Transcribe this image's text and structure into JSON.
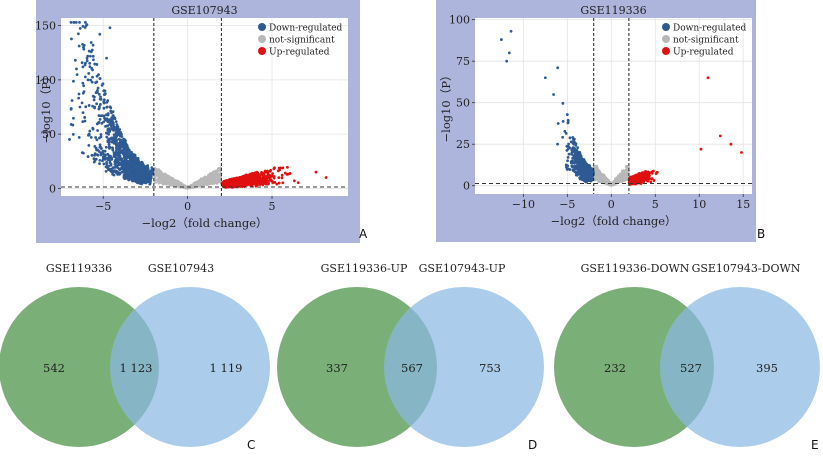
{
  "colors": {
    "panel_bg": "#aeb5dd",
    "plot_bg": "#ffffff",
    "down": "#2e5b93",
    "notsig": "#b8b8b8",
    "up": "#e01010",
    "venn_left": "#5e9e5a",
    "venn_right": "#8ab9e3"
  },
  "panel_labels": [
    "A",
    "B",
    "C",
    "D",
    "E"
  ],
  "chart_data": [
    {
      "type": "scatter",
      "panel": "A",
      "title": "GSE107943",
      "xlabel": "−log2（fold change）",
      "ylabel": "−log10（P）",
      "xlim": [
        -7.5,
        9.5
      ],
      "ylim": [
        -7,
        157
      ],
      "xticks": [
        -5,
        0,
        5
      ],
      "xtick_labels": [
        "−5",
        "0",
        "5"
      ],
      "yticks": [
        0,
        50,
        100,
        150
      ],
      "fc_threshold": 2,
      "p_line": 1.3,
      "grid": true,
      "legend_position": "top-right",
      "series": [
        {
          "name": "Down-regulated",
          "color_key": "down"
        },
        {
          "name": "not-significant",
          "color_key": "notsig"
        },
        {
          "name": "Up-regulated",
          "color_key": "up"
        }
      ]
    },
    {
      "type": "scatter",
      "panel": "B",
      "title": "GSE119336",
      "xlabel": "−log2（fold change）",
      "ylabel": "−log10（P）",
      "xlim": [
        -15.5,
        16
      ],
      "ylim": [
        -5,
        101
      ],
      "xticks": [
        -10,
        -5,
        0,
        5,
        10,
        15
      ],
      "xtick_labels": [
        "−10",
        "−5",
        "0",
        "5",
        "10",
        "15"
      ],
      "yticks": [
        0,
        25,
        50,
        75,
        100
      ],
      "fc_threshold": 2,
      "p_line": 1.3,
      "grid": true,
      "legend_position": "top-right",
      "series": [
        {
          "name": "Down-regulated",
          "color_key": "down"
        },
        {
          "name": "not-significant",
          "color_key": "notsig"
        },
        {
          "name": "Up-regulated",
          "color_key": "up"
        }
      ]
    },
    {
      "type": "venn",
      "panel": "C",
      "sets": [
        "GSE119336",
        "GSE107943"
      ],
      "left_only": "542",
      "overlap": "1 123",
      "right_only": "1 119"
    },
    {
      "type": "venn",
      "panel": "D",
      "sets": [
        "GSE119336-UP",
        "GSE107943-UP"
      ],
      "left_only": "337",
      "overlap": "567",
      "right_only": "753"
    },
    {
      "type": "venn",
      "panel": "E",
      "sets": [
        "GSE119336-DOWN",
        "GSE107943-DOWN"
      ],
      "left_only": "232",
      "overlap": "527",
      "right_only": "395"
    }
  ]
}
